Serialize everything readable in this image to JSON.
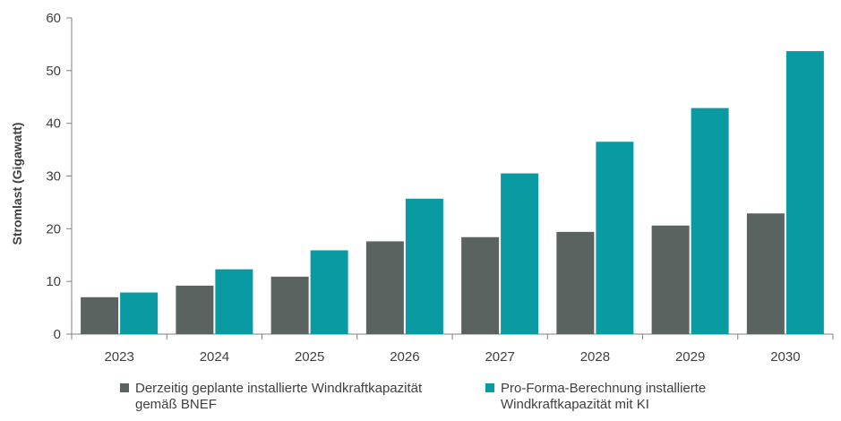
{
  "chart_data": {
    "type": "bar",
    "title": "",
    "xlabel": "",
    "ylabel": "Stromlast (Gigawatt)",
    "ylim": [
      0,
      60
    ],
    "yticks": [
      0,
      10,
      20,
      30,
      40,
      50,
      60
    ],
    "categories": [
      "2023",
      "2024",
      "2025",
      "2026",
      "2027",
      "2028",
      "2029",
      "2030"
    ],
    "grid": false,
    "legend_position": "bottom",
    "series": [
      {
        "name": "Derzeitig geplante installierte Windkraftkapazität gemäß BNEF",
        "name_lines": [
          "Derzeitig geplante installierte Windkraftkapazität",
          "gemäß BNEF"
        ],
        "color": "#5a6360",
        "values": [
          7.0,
          9.2,
          10.9,
          17.6,
          18.4,
          19.4,
          20.6,
          22.9
        ]
      },
      {
        "name": "Pro-Forma-Berechnung installierte Windkraftkapazität mit KI",
        "name_lines": [
          "Pro-Forma-Berechnung installierte",
          "Windkraftkapazität mit KI"
        ],
        "color": "#0a9aa2",
        "values": [
          7.9,
          12.3,
          15.9,
          25.7,
          30.5,
          36.5,
          42.9,
          53.7
        ]
      }
    ]
  }
}
